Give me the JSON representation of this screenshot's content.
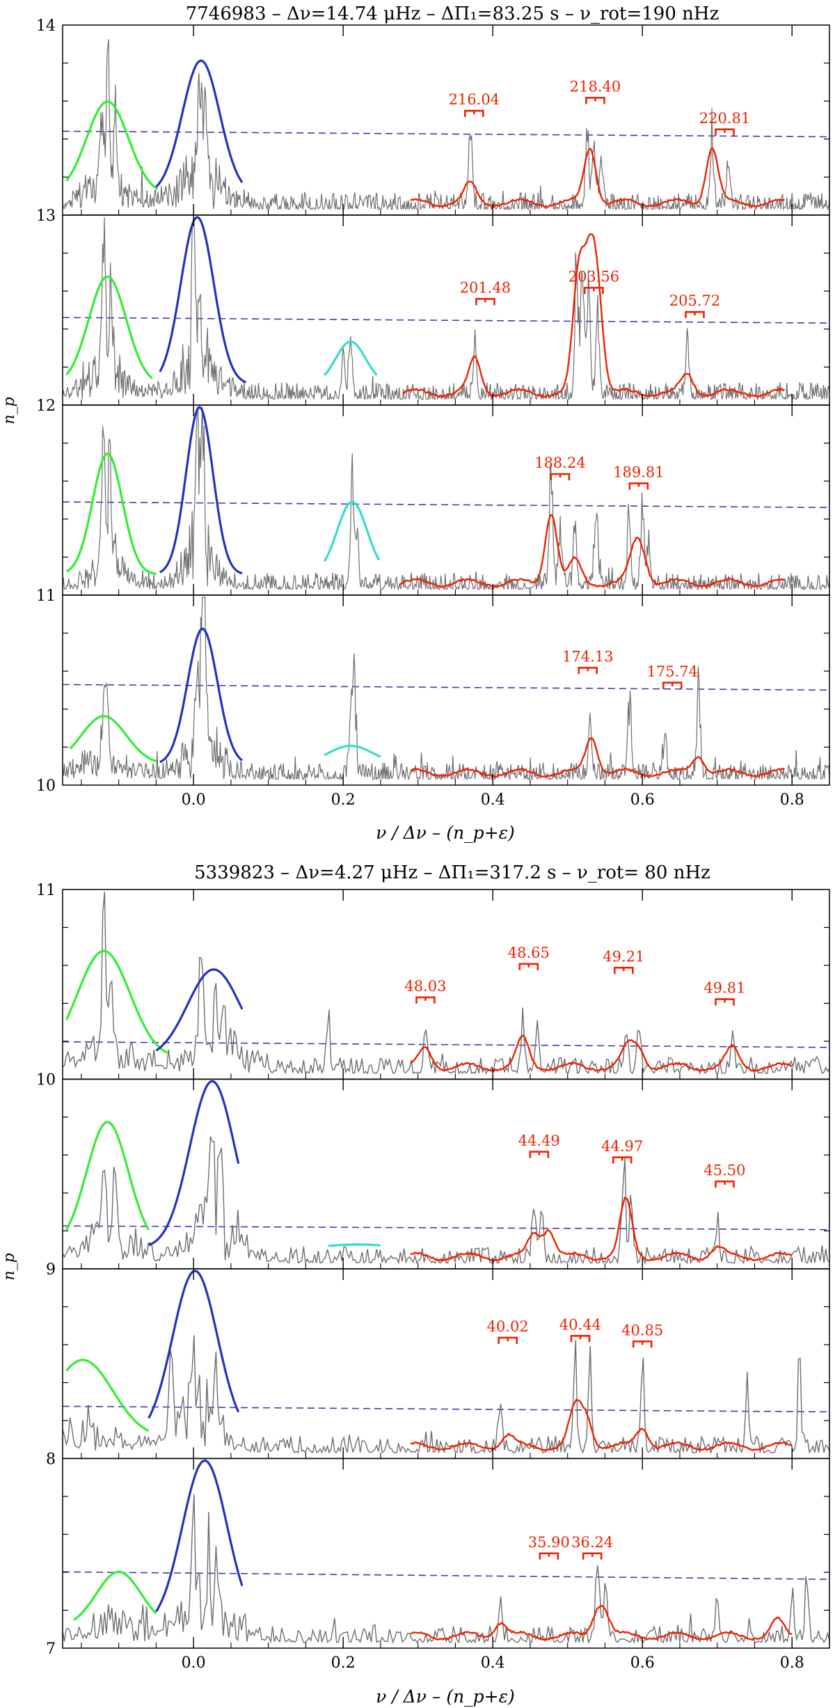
{
  "chart_data": [
    {
      "type": "line",
      "title": "7746983 – Δν=14.74 μHz – ΔΠ₁=83.25 s – ν_rot=190 nHz",
      "xlabel": "ν / Δν – (n_p+ε)",
      "ylabel": "n_p",
      "xlim": [
        -0.175,
        0.85
      ],
      "ylim": [
        10,
        14
      ],
      "x_ticks": [
        "0.0",
        "0.2",
        "0.4",
        "0.6",
        "0.8"
      ],
      "y_ticks": [
        "10",
        "11",
        "12",
        "13",
        "14"
      ],
      "colors": {
        "spectrum": "#6e6e6e",
        "l0": "#2233bb",
        "l2": "#33ee33",
        "l3": "#33ddcc",
        "l1": "#ee2200",
        "threshold": "#5533aa",
        "annotation": "#ee2200"
      },
      "strips": [
        {
          "np": 13,
          "threshold": [
            0.44,
            0.41
          ],
          "l2": {
            "center": -0.115,
            "amp": 0.6,
            "width": 0.028,
            "range": [
              -0.17,
              -0.048
            ]
          },
          "l0": {
            "center": 0.01,
            "amp": 0.82,
            "width": 0.025,
            "range": [
              -0.05,
              0.065
            ]
          },
          "l3": null,
          "l1_range": [
            0.29,
            0.79
          ],
          "peaks": [
            [
              -0.115,
              1.0
            ],
            [
              -0.123,
              0.6
            ],
            [
              -0.105,
              0.55
            ],
            [
              0.01,
              0.5
            ],
            [
              0.015,
              0.4
            ],
            [
              0.005,
              0.35
            ],
            [
              0.37,
              0.55
            ],
            [
              0.526,
              0.55
            ],
            [
              0.535,
              0.5
            ],
            [
              0.545,
              0.35
            ],
            [
              0.693,
              0.5
            ],
            [
              0.715,
              0.3
            ]
          ],
          "l1_bumps": [
            [
              0.37,
              0.1
            ],
            [
              0.53,
              0.3
            ],
            [
              0.693,
              0.3
            ]
          ],
          "labels": [
            {
              "x": 0.375,
              "text": "216.04",
              "y": 0.55
            },
            {
              "x": 0.537,
              "text": "218.40",
              "y": 0.62
            },
            {
              "x": 0.71,
              "text": "220.81",
              "y": 0.45
            }
          ]
        },
        {
          "np": 12,
          "threshold": [
            0.46,
            0.43
          ],
          "l2": {
            "center": -0.115,
            "amp": 0.68,
            "width": 0.025,
            "range": [
              -0.17,
              -0.055
            ]
          },
          "l0": {
            "center": 0.005,
            "amp": 1.0,
            "width": 0.022,
            "range": [
              -0.045,
              0.07
            ]
          },
          "l3": {
            "center": 0.21,
            "amp": 0.33,
            "width": 0.02,
            "range": [
              0.175,
              0.245
            ]
          },
          "l1_range": [
            0.28,
            0.79
          ],
          "peaks": [
            [
              -0.12,
              0.95
            ],
            [
              -0.11,
              0.6
            ],
            [
              0.0,
              0.95
            ],
            [
              0.008,
              0.6
            ],
            [
              0.21,
              0.45
            ],
            [
              0.2,
              0.28
            ],
            [
              0.376,
              0.4
            ],
            [
              0.512,
              1.0
            ],
            [
              0.52,
              0.85
            ],
            [
              0.528,
              0.7
            ],
            [
              0.54,
              0.6
            ],
            [
              0.66,
              0.35
            ]
          ],
          "l1_bumps": [
            [
              0.376,
              0.18
            ],
            [
              0.515,
              0.62
            ],
            [
              0.53,
              0.55
            ],
            [
              0.54,
              0.45
            ],
            [
              0.66,
              0.1
            ]
          ],
          "labels": [
            {
              "x": 0.39,
              "text": "201.48",
              "y": 0.56
            },
            {
              "x": 0.535,
              "text": "203.56",
              "y": 0.62
            },
            {
              "x": 0.67,
              "text": "205.72",
              "y": 0.49
            }
          ]
        },
        {
          "np": 11,
          "threshold": [
            0.49,
            0.46
          ],
          "l2": {
            "center": -0.115,
            "amp": 0.75,
            "width": 0.02,
            "range": [
              -0.17,
              -0.05
            ]
          },
          "l0": {
            "center": 0.008,
            "amp": 1.0,
            "width": 0.018,
            "range": [
              -0.045,
              0.065
            ]
          },
          "l3": {
            "center": 0.212,
            "amp": 0.49,
            "width": 0.02,
            "range": [
              0.175,
              0.248
            ]
          },
          "l1_range": [
            0.275,
            0.79
          ],
          "peaks": [
            [
              -0.12,
              0.95
            ],
            [
              -0.112,
              0.7
            ],
            [
              0.005,
              1.0
            ],
            [
              0.012,
              0.9
            ],
            [
              0.212,
              0.8
            ],
            [
              0.218,
              0.4
            ],
            [
              0.478,
              0.9
            ],
            [
              0.49,
              0.45
            ],
            [
              0.51,
              0.45
            ],
            [
              0.538,
              0.55
            ],
            [
              0.582,
              0.45
            ],
            [
              0.6,
              0.5
            ],
            [
              0.608,
              0.3
            ]
          ],
          "l1_bumps": [
            [
              0.478,
              0.38
            ],
            [
              0.51,
              0.12
            ],
            [
              0.59,
              0.17
            ],
            [
              0.6,
              0.12
            ]
          ],
          "labels": [
            {
              "x": 0.49,
              "text": "188.24",
              "y": 0.64
            },
            {
              "x": 0.595,
              "text": "189.81",
              "y": 0.59
            }
          ]
        },
        {
          "np": 10,
          "threshold": [
            0.53,
            0.5
          ],
          "l2": {
            "center": -0.12,
            "amp": 0.36,
            "width": 0.03,
            "range": [
              -0.165,
              -0.05
            ]
          },
          "l0": {
            "center": 0.012,
            "amp": 0.83,
            "width": 0.02,
            "range": [
              -0.045,
              0.065
            ]
          },
          "l3": {
            "center": 0.21,
            "amp": 0.2,
            "width": 0.03,
            "range": [
              0.175,
              0.25
            ]
          },
          "l1_range": [
            0.29,
            0.79
          ],
          "peaks": [
            [
              -0.12,
              0.5
            ],
            [
              -0.115,
              0.4
            ],
            [
              0.012,
              1.0
            ],
            [
              0.015,
              0.9
            ],
            [
              0.005,
              0.6
            ],
            [
              0.215,
              0.65
            ],
            [
              0.21,
              0.4
            ],
            [
              0.53,
              0.4
            ],
            [
              0.583,
              0.5
            ],
            [
              0.675,
              0.6
            ],
            [
              0.63,
              0.3
            ]
          ],
          "l1_bumps": [
            [
              0.532,
              0.2
            ],
            [
              0.675,
              0.1
            ]
          ],
          "labels": [
            {
              "x": 0.527,
              "text": "174.13",
              "y": 0.62
            },
            {
              "x": 0.64,
              "text": "175.74",
              "y": 0.54
            }
          ]
        }
      ]
    },
    {
      "type": "line",
      "title": "5339823 – Δν=4.27 μHz – ΔΠ₁=317.2 s – ν_rot= 80 nHz",
      "xlabel": "ν / Δν – (n_p+ε)",
      "ylabel": "n_p",
      "xlim": [
        -0.175,
        0.85
      ],
      "ylim": [
        7,
        11
      ],
      "x_ticks": [
        "0.0",
        "0.2",
        "0.4",
        "0.6",
        "0.8"
      ],
      "y_ticks": [
        "7",
        "8",
        "9",
        "10",
        "11"
      ],
      "colors": {
        "spectrum": "#6e6e6e",
        "l0": "#2233bb",
        "l2": "#33ee33",
        "l3": "#33ddcc",
        "l1": "#ee2200",
        "threshold": "#5533aa",
        "annotation": "#ee2200"
      },
      "strips": [
        {
          "np": 10,
          "threshold": [
            0.19,
            0.16
          ],
          "l2": {
            "center": -0.12,
            "amp": 0.68,
            "width": 0.035,
            "range": [
              -0.17,
              -0.035
            ]
          },
          "l0": {
            "center": 0.027,
            "amp": 0.58,
            "width": 0.035,
            "range": [
              -0.05,
              0.065
            ]
          },
          "l3": null,
          "l1_range": [
            0.29,
            0.8
          ],
          "peaks": [
            [
              -0.12,
              1.0
            ],
            [
              -0.11,
              0.6
            ],
            [
              0.01,
              0.75
            ],
            [
              0.03,
              0.5
            ],
            [
              0.04,
              0.45
            ],
            [
              0.18,
              0.3
            ],
            [
              0.31,
              0.3
            ],
            [
              0.44,
              0.35
            ],
            [
              0.46,
              0.3
            ],
            [
              0.578,
              0.3
            ],
            [
              0.595,
              0.28
            ],
            [
              0.72,
              0.22
            ]
          ],
          "l1_bumps": [
            [
              0.31,
              0.1
            ],
            [
              0.44,
              0.15
            ],
            [
              0.58,
              0.1
            ],
            [
              0.595,
              0.1
            ],
            [
              0.72,
              0.1
            ]
          ],
          "labels": [
            {
              "x": 0.31,
              "text": "48.03",
              "y": 0.43
            },
            {
              "x": 0.448,
              "text": "48.65",
              "y": 0.61
            },
            {
              "x": 0.575,
              "text": "49.21",
              "y": 0.59
            },
            {
              "x": 0.71,
              "text": "49.81",
              "y": 0.42
            }
          ]
        },
        {
          "np": 9,
          "threshold": [
            0.22,
            0.2
          ],
          "l2": {
            "center": -0.115,
            "amp": 0.78,
            "width": 0.028,
            "range": [
              -0.17,
              -0.06
            ]
          },
          "l0": {
            "center": 0.025,
            "amp": 1.0,
            "width": 0.03,
            "range": [
              -0.06,
              0.06
            ]
          },
          "l3": {
            "center": 0.22,
            "amp": 0.12,
            "width": 0.04,
            "range": [
              0.18,
              0.25
            ]
          },
          "l1_range": [
            0.29,
            0.8
          ],
          "peaks": [
            [
              -0.12,
              0.7
            ],
            [
              -0.105,
              0.55
            ],
            [
              0.025,
              0.9
            ],
            [
              0.035,
              0.6
            ],
            [
              0.455,
              0.5
            ],
            [
              0.465,
              0.4
            ],
            [
              0.575,
              0.75
            ],
            [
              0.585,
              0.4
            ],
            [
              0.7,
              0.25
            ]
          ],
          "l1_bumps": [
            [
              0.455,
              0.12
            ],
            [
              0.475,
              0.15
            ],
            [
              0.578,
              0.3
            ],
            [
              0.7,
              0.05
            ]
          ],
          "labels": [
            {
              "x": 0.462,
              "text": "44.49",
              "y": 0.62
            },
            {
              "x": 0.573,
              "text": "44.97",
              "y": 0.59
            },
            {
              "x": 0.71,
              "text": "45.50",
              "y": 0.46
            }
          ]
        },
        {
          "np": 8,
          "threshold": [
            0.27,
            0.24
          ],
          "l2": {
            "center": -0.148,
            "amp": 0.52,
            "width": 0.04,
            "range": [
              -0.17,
              -0.06
            ]
          },
          "l0": {
            "center": 0.002,
            "amp": 1.0,
            "width": 0.03,
            "range": [
              -0.06,
              0.06
            ]
          },
          "l3": null,
          "l1_range": [
            0.29,
            0.8
          ],
          "peaks": [
            [
              -0.03,
              0.45
            ],
            [
              0.0,
              0.5
            ],
            [
              0.03,
              0.4
            ],
            [
              0.41,
              0.4
            ],
            [
              0.51,
              0.55
            ],
            [
              0.53,
              0.5
            ],
            [
              0.6,
              0.55
            ],
            [
              0.74,
              0.55
            ],
            [
              0.81,
              0.6
            ]
          ],
          "l1_bumps": [
            [
              0.42,
              0.06
            ],
            [
              0.51,
              0.2
            ],
            [
              0.525,
              0.15
            ],
            [
              0.6,
              0.1
            ]
          ],
          "labels": [
            {
              "x": 0.42,
              "text": "40.02",
              "y": 0.64
            },
            {
              "x": 0.517,
              "text": "40.44",
              "y": 0.65
            },
            {
              "x": 0.6,
              "text": "40.85",
              "y": 0.62
            }
          ]
        },
        {
          "np": 7,
          "threshold": [
            0.4,
            0.36
          ],
          "l2": {
            "center": -0.1,
            "amp": 0.4,
            "width": 0.03,
            "range": [
              -0.16,
              -0.05
            ]
          },
          "l0": {
            "center": 0.015,
            "amp": 1.0,
            "width": 0.03,
            "range": [
              -0.05,
              0.065
            ]
          },
          "l3": null,
          "l1_range": [
            0.29,
            0.8
          ],
          "peaks": [
            [
              0.0,
              0.6
            ],
            [
              0.02,
              0.5
            ],
            [
              0.03,
              0.45
            ],
            [
              0.41,
              0.3
            ],
            [
              0.54,
              0.45
            ],
            [
              0.55,
              0.4
            ],
            [
              0.7,
              0.3
            ],
            [
              0.8,
              0.35
            ],
            [
              0.82,
              0.4
            ]
          ],
          "l1_bumps": [
            [
              0.41,
              0.08
            ],
            [
              0.54,
              0.12
            ],
            [
              0.55,
              0.1
            ],
            [
              0.78,
              0.08
            ]
          ],
          "labels": [
            {
              "x": 0.475,
              "text": "35.90",
              "y": 0.5
            },
            {
              "x": 0.533,
              "text": "36.24",
              "y": 0.5
            }
          ]
        }
      ]
    }
  ]
}
